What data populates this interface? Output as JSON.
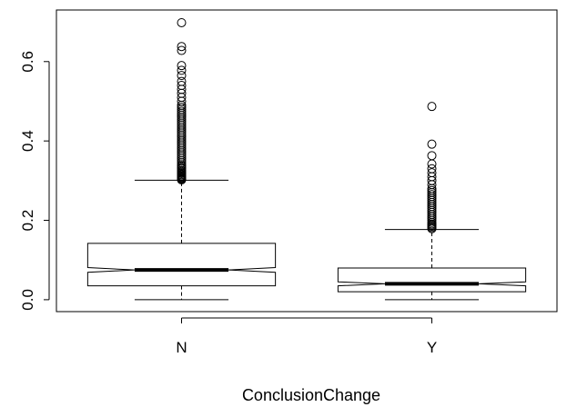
{
  "chart_data": {
    "type": "boxplot",
    "title": "",
    "xlabel": "ConclusionChange",
    "ylabel": "",
    "categories": [
      "N",
      "Y"
    ],
    "ylim": [
      -0.03,
      0.73
    ],
    "yticks": [
      "0.0",
      "0.2",
      "0.4",
      "0.6"
    ],
    "notched": true,
    "grid": false,
    "series": [
      {
        "category": "N",
        "whisker_low": 0.0,
        "q1": 0.035,
        "notch_low": 0.069,
        "median": 0.075,
        "notch_high": 0.081,
        "q3": 0.142,
        "whisker_high": 0.301,
        "outliers": [
          0.302,
          0.304,
          0.306,
          0.308,
          0.31,
          0.312,
          0.315,
          0.318,
          0.32,
          0.323,
          0.326,
          0.33,
          0.333,
          0.337,
          0.34,
          0.345,
          0.35,
          0.355,
          0.36,
          0.365,
          0.37,
          0.375,
          0.38,
          0.385,
          0.39,
          0.395,
          0.4,
          0.405,
          0.41,
          0.415,
          0.42,
          0.425,
          0.43,
          0.435,
          0.44,
          0.445,
          0.45,
          0.455,
          0.46,
          0.465,
          0.47,
          0.475,
          0.48,
          0.485,
          0.49,
          0.5,
          0.51,
          0.52,
          0.53,
          0.54,
          0.55,
          0.565,
          0.578,
          0.59,
          0.628,
          0.638,
          0.698
        ]
      },
      {
        "category": "Y",
        "whisker_low": 0.0,
        "q1": 0.02,
        "notch_low": 0.035,
        "median": 0.04,
        "notch_high": 0.045,
        "q3": 0.08,
        "whisker_high": 0.177,
        "outliers": [
          0.179,
          0.182,
          0.185,
          0.188,
          0.191,
          0.195,
          0.2,
          0.205,
          0.21,
          0.215,
          0.22,
          0.225,
          0.23,
          0.235,
          0.24,
          0.245,
          0.25,
          0.255,
          0.26,
          0.265,
          0.27,
          0.275,
          0.28,
          0.29,
          0.3,
          0.31,
          0.32,
          0.33,
          0.342,
          0.363,
          0.392,
          0.487
        ]
      }
    ]
  }
}
